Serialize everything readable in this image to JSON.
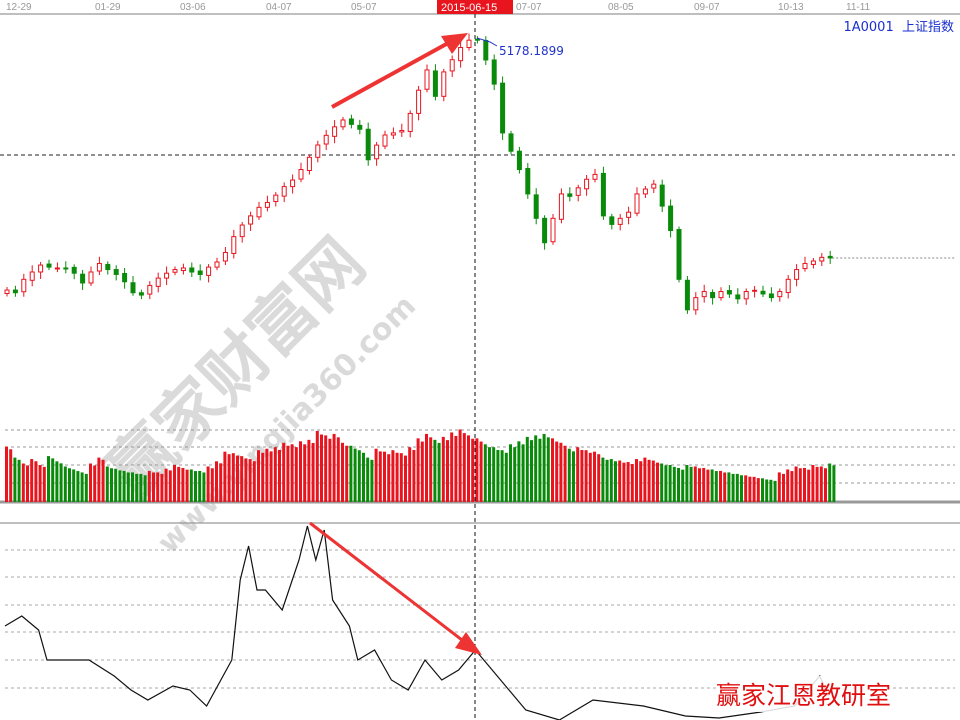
{
  "header": {
    "symbol": "1A0001",
    "name": "上证指数",
    "crosshair_date": "2015-06-15"
  },
  "peak_label": "5178.1899",
  "watermark": {
    "main": "赢家财富网",
    "url": "www.yingjia360.com"
  },
  "studio_label": "赢家江恩教研室",
  "colors": {
    "up": "#e8141e",
    "down": "#0a8a0a",
    "accent_blue": "#2233cc",
    "arrow": "#ee3333"
  },
  "chart_data": {
    "type": "candlestick",
    "x_ticks": [
      "12-29",
      "01-29",
      "03-06",
      "04-07",
      "05-07",
      "06-15",
      "07-07",
      "08-05",
      "09-07",
      "10-13",
      "11-11"
    ],
    "peak": {
      "date": "2015-06-15",
      "value": 5178.1899
    },
    "reference_line": 4219,
    "last_line": 3375,
    "close": [
      3112,
      3090,
      3200,
      3260,
      3317,
      3300,
      3293,
      3290,
      3250,
      3170,
      3260,
      3330,
      3280,
      3240,
      3180,
      3090,
      3071,
      3150,
      3210,
      3250,
      3280,
      3293,
      3260,
      3240,
      3300,
      3342,
      3420,
      3550,
      3645,
      3720,
      3790,
      3830,
      3890,
      3960,
      4014,
      4100,
      4200,
      4301,
      4380,
      4450,
      4506,
      4470,
      4430,
      4180,
      4300,
      4383,
      4400,
      4420,
      4560,
      4750,
      4916,
      4700,
      4900,
      5000,
      5100,
      5160,
      5166,
      4998,
      4800,
      4400,
      4250,
      4100,
      3900,
      3700,
      3500,
      3700,
      3900,
      3880,
      3950,
      4020,
      4060,
      3720,
      3650,
      3700,
      3750,
      3900,
      3940,
      3980,
      3800,
      3600,
      3200,
      2950,
      3050,
      3100,
      3050,
      3100,
      3080,
      3040,
      3100,
      3110,
      3080,
      3050,
      3100,
      3200,
      3280,
      3330,
      3350,
      3380,
      3375
    ],
    "volume": [
      75,
      60,
      52,
      58,
      50,
      62,
      55,
      48,
      44,
      40,
      52,
      60,
      48,
      45,
      42,
      40,
      38,
      42,
      40,
      45,
      50,
      46,
      44,
      42,
      48,
      55,
      68,
      66,
      62,
      58,
      70,
      72,
      74,
      80,
      78,
      82,
      84,
      96,
      90,
      92,
      80,
      76,
      70,
      60,
      72,
      68,
      70,
      66,
      74,
      86,
      92,
      84,
      88,
      94,
      98,
      90,
      86,
      78,
      74,
      70,
      78,
      82,
      88,
      90,
      92,
      86,
      80,
      72,
      74,
      70,
      68,
      60,
      58,
      56,
      54,
      58,
      60,
      56,
      52,
      50,
      46,
      50,
      48,
      46,
      44,
      42,
      40,
      38,
      36,
      34,
      32,
      30,
      40,
      44,
      48,
      46,
      50,
      48,
      52
    ],
    "oscillator": {
      "x_index": [
        0,
        2,
        4,
        5,
        8,
        10,
        13,
        15,
        17,
        20,
        22,
        24,
        27,
        28,
        29,
        30,
        31,
        33,
        35,
        36,
        37,
        38,
        39,
        41,
        42,
        44,
        46,
        48,
        50,
        52,
        54,
        56,
        58,
        60,
        62,
        66,
        70,
        76,
        81,
        85,
        90,
        94,
        97,
        98
      ],
      "values": [
        47,
        52,
        45,
        30,
        30,
        30,
        22,
        15,
        10,
        17,
        15,
        7,
        30,
        70,
        87,
        65,
        65,
        55,
        80,
        97,
        80,
        95,
        60,
        47,
        30,
        35,
        20,
        15,
        30,
        20,
        25,
        35,
        25,
        15,
        5,
        0,
        10,
        7,
        2,
        1,
        4,
        7,
        22,
        12
      ]
    }
  }
}
